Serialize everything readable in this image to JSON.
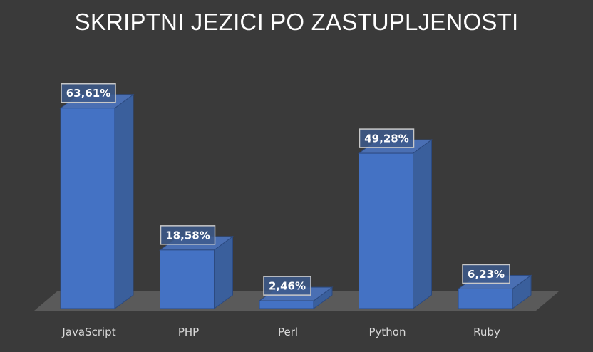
{
  "chart_data": {
    "type": "bar",
    "title": "SKRIPTNI JEZICI PO ZASTUPLJENOSTI",
    "categories": [
      "JavaScript",
      "PHP",
      "Perl",
      "Python",
      "Ruby"
    ],
    "values": [
      63.61,
      18.58,
      2.46,
      49.28,
      6.23
    ],
    "data_labels": [
      "63,61%",
      "18,58%",
      "2,46%",
      "49,28%",
      "6,23%"
    ],
    "ylim": [
      0,
      64
    ],
    "grid": false,
    "legend": "none",
    "style": "3d-column"
  },
  "colors": {
    "background": "#3a3a3a",
    "floor": "#5a5a5a",
    "bar_front": "#4472c4",
    "bar_side": "#3a5f9c",
    "bar_top": "#4a6fb3",
    "bar_edge": "#2c4a80",
    "label_fill": "#3d5a8c",
    "label_border": "#c8c8c8",
    "title": "#ffffff",
    "tick": "#d9d9d9"
  }
}
